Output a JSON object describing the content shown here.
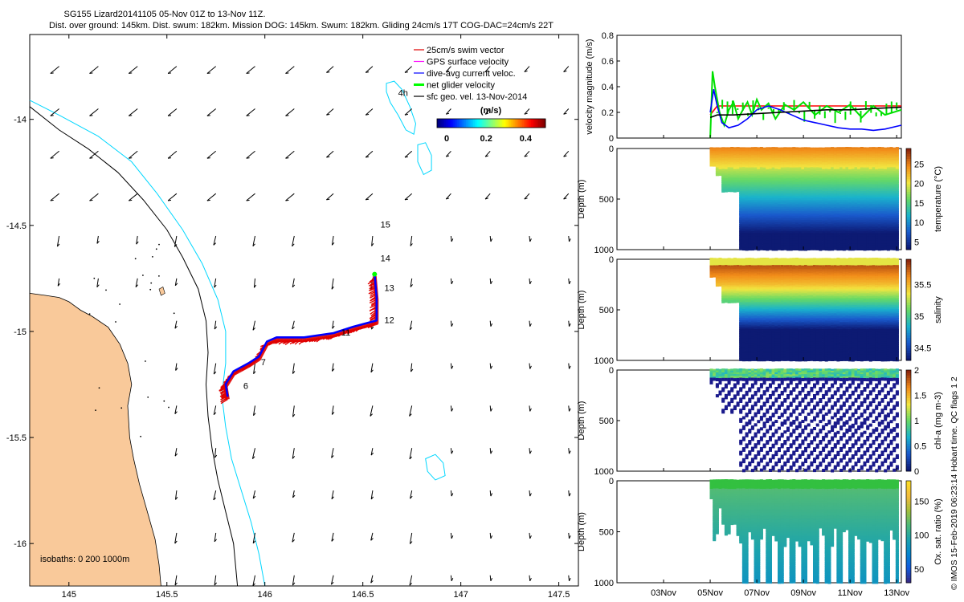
{
  "title_line1": "SG155 Lizard20141105 05-Nov 01Z to 13-Nov 11Z.",
  "title_line2": "Dist. over ground: 145km. Dist. swum: 182km. Mission DOG: 145km. Swum: 182km. Gliding 24cm/s 17T COG-DAC=24cm/s 22T",
  "chart_data": [
    {
      "type": "scatter",
      "title": "Glider track map",
      "xlim": [
        144.8,
        147.6
      ],
      "ylim": [
        -16.2,
        -13.6
      ],
      "xticks": [
        "145",
        "145.5",
        "146",
        "146.5",
        "147",
        "147.5"
      ],
      "yticks": [
        "-14",
        "-14.5",
        "-15",
        "-15.5",
        "-16"
      ],
      "legend": [
        "25cm/s swim vector",
        "GPS surface velocity",
        "dive-avg current veloc.",
        "net glider velocity",
        "sfc geo. vel. 13-Nov-2014"
      ],
      "legend_colors": [
        "#e00000",
        "#ff00ff",
        "#0000ff",
        "#00ff00",
        "#000000"
      ],
      "colorbar_label": "(m/s)",
      "colorbar_ticks": [
        "0",
        "0.2",
        "0.4"
      ],
      "isobaths_label": "isobaths: 0   200  1000m",
      "day_labels": [
        {
          "text": "6",
          "lon": 145.89,
          "lat": -15.27
        },
        {
          "text": "7",
          "lon": 145.98,
          "lat": -15.16
        },
        {
          "text": "11",
          "lon": 146.39,
          "lat": -15.02
        },
        {
          "text": "12",
          "lon": 146.61,
          "lat": -14.96
        },
        {
          "text": "13",
          "lon": 146.61,
          "lat": -14.81
        },
        {
          "text": "14",
          "lon": 146.59,
          "lat": -14.67
        },
        {
          "text": "15",
          "lon": 146.59,
          "lat": -14.51
        },
        {
          "text": "4h",
          "lon": 146.68,
          "lat": -13.89
        }
      ],
      "track": [
        [
          145.81,
          -15.32
        ],
        [
          145.8,
          -15.26
        ],
        [
          145.84,
          -15.2
        ],
        [
          145.92,
          -15.16
        ],
        [
          145.97,
          -15.13
        ],
        [
          146.01,
          -15.06
        ],
        [
          146.06,
          -15.04
        ],
        [
          146.2,
          -15.04
        ],
        [
          146.35,
          -15.02
        ],
        [
          146.45,
          -14.99
        ],
        [
          146.57,
          -14.96
        ],
        [
          146.57,
          -14.85
        ],
        [
          146.56,
          -14.74
        ]
      ]
    },
    {
      "type": "line",
      "ylabel": "velocity magnitude (m/s)",
      "ylim": [
        0,
        0.8
      ],
      "yticks": [
        "0",
        "0.2",
        "0.4",
        "0.6",
        "0.8"
      ],
      "series": [
        {
          "name": "25cm/s swim vector",
          "color": "#ff0000",
          "x": [
            5.0,
            5.3,
            13.2
          ],
          "y": [
            0.18,
            0.25,
            0.25
          ]
        },
        {
          "name": "net glider velocity",
          "color": "#00e000",
          "x": [
            5.0,
            5.1,
            5.2,
            5.4,
            5.6,
            5.8,
            6.0,
            6.2,
            6.4,
            6.6,
            6.8,
            7.0,
            7.2,
            7.5,
            7.8,
            8.2,
            8.6,
            9.0,
            9.5,
            10.0,
            10.5,
            11.0,
            11.5,
            12.0,
            12.5,
            13.2
          ],
          "y": [
            0.0,
            0.52,
            0.4,
            0.2,
            0.1,
            0.22,
            0.28,
            0.15,
            0.22,
            0.28,
            0.18,
            0.3,
            0.22,
            0.27,
            0.15,
            0.26,
            0.22,
            0.28,
            0.18,
            0.25,
            0.2,
            0.26,
            0.16,
            0.25,
            0.18,
            0.22
          ]
        },
        {
          "name": "dive-avg current veloc.",
          "color": "#0000ff",
          "x": [
            5.0,
            5.15,
            5.3,
            5.5,
            5.8,
            6.2,
            6.6,
            7.0,
            7.5,
            8.0,
            8.5,
            9.0,
            9.5,
            10.0,
            10.5,
            11.0,
            11.5,
            12.0,
            12.5,
            13.2
          ],
          "y": [
            0.2,
            0.38,
            0.25,
            0.12,
            0.08,
            0.1,
            0.15,
            0.22,
            0.25,
            0.22,
            0.18,
            0.14,
            0.12,
            0.1,
            0.08,
            0.07,
            0.07,
            0.06,
            0.07,
            0.1
          ]
        },
        {
          "name": "sfc geo. vel.",
          "color": "#000000",
          "x": [
            5.0,
            5.3,
            6.0,
            7.0,
            8.0,
            9.0,
            10.0,
            11.0,
            12.0,
            13.2
          ],
          "y": [
            0.16,
            0.18,
            0.18,
            0.19,
            0.2,
            0.21,
            0.22,
            0.22,
            0.23,
            0.24
          ]
        }
      ]
    },
    {
      "type": "heatmap",
      "ylabel": "Depth (m)",
      "ylim": [
        1000,
        0
      ],
      "yticks": [
        "0",
        "500",
        "1000"
      ],
      "colorbar_label": "temperature (°C)",
      "colorbar_ticks": [
        "5",
        "10",
        "15",
        "20",
        "25"
      ],
      "color_range": [
        3,
        29
      ]
    },
    {
      "type": "heatmap",
      "ylabel": "Depth (m)",
      "ylim": [
        1000,
        0
      ],
      "yticks": [
        "0",
        "500",
        "1000"
      ],
      "colorbar_label": "salinity",
      "colorbar_ticks": [
        "34.5",
        "35",
        "35.5"
      ],
      "color_range": [
        34.3,
        35.9
      ]
    },
    {
      "type": "heatmap",
      "ylabel": "Depth (m)",
      "ylim": [
        1000,
        0
      ],
      "yticks": [
        "0",
        "500",
        "1000"
      ],
      "colorbar_label": "chl-a (mg m-3)",
      "colorbar_ticks": [
        "0",
        "0.5",
        "1",
        "1.5",
        "2"
      ],
      "color_range": [
        0,
        2
      ]
    },
    {
      "type": "heatmap",
      "ylabel": "Depth (m)",
      "ylim": [
        1000,
        0
      ],
      "yticks": [
        "0",
        "500",
        "1000"
      ],
      "colorbar_label": "Ox. sat. ratio (%)",
      "colorbar_ticks": [
        "50",
        "100",
        "150"
      ],
      "color_range": [
        30,
        180
      ],
      "xticks": [
        "03Nov",
        "05Nov",
        "07Nov",
        "09Nov",
        "11Nov",
        "13Nov"
      ],
      "xlim": [
        1,
        13.2
      ]
    }
  ],
  "side_note": "© IMOS 15-Feb-2019 06:23:14 Hobart time. QC flags 1  2",
  "colors": {
    "land": "#f9c99a",
    "isobath_200": "#000000",
    "isobath_1000": "#00d7ff",
    "reef": "#00d7ff"
  }
}
